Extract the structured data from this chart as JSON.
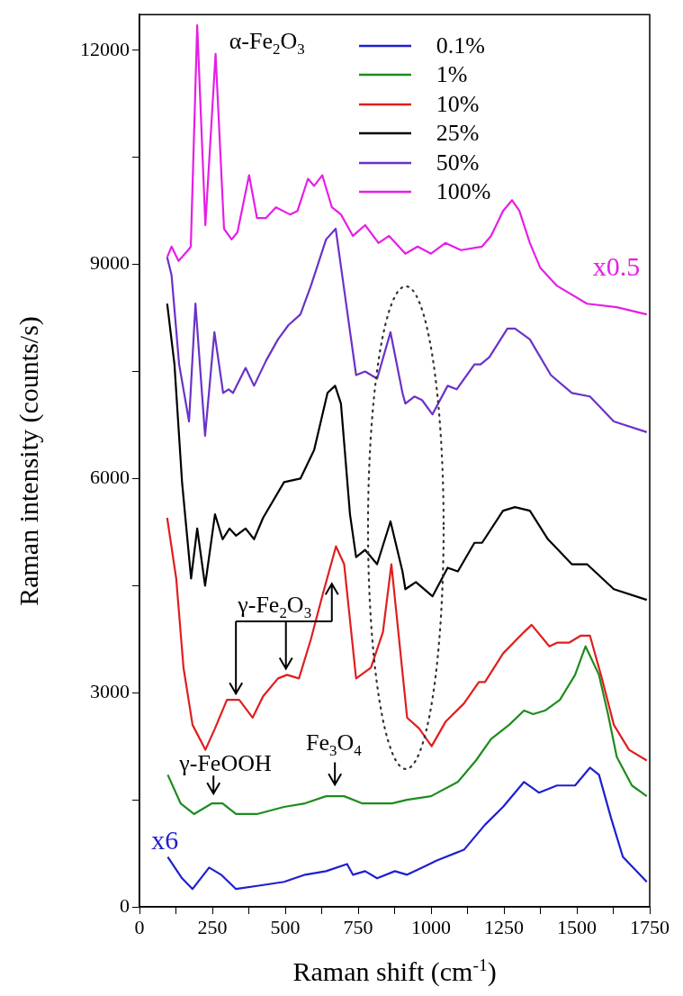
{
  "chart_data": {
    "type": "line",
    "xlabel": "Raman shift (cm$^{-1}$)",
    "ylabel": "Raman intensity (counts/s)",
    "xlim": [
      0,
      1750
    ],
    "ylim": [
      0,
      12500
    ],
    "xticks": [
      0,
      {
        "value": 125,
        "label": null
      },
      250,
      {
        "value": 375,
        "label": null
      },
      500,
      {
        "value": 625,
        "label": null
      },
      750,
      {
        "value": 875,
        "label": null
      },
      1000,
      {
        "value": 1125,
        "label": null
      },
      1250,
      {
        "value": 1375,
        "label": null
      },
      1500,
      {
        "value": 1625,
        "label": null
      },
      1750
    ],
    "yticks": [
      0,
      {
        "value": 1500,
        "label": null
      },
      3000,
      {
        "value": 4500,
        "label": null
      },
      6000,
      {
        "value": 7500,
        "label": null
      },
      9000,
      {
        "value": 10500,
        "label": null
      },
      12000
    ],
    "grid": false,
    "legend": "top",
    "marker": "none",
    "line_style": "solid",
    "series": [
      {
        "name": "0.1%",
        "color": "#1f1fd0",
        "x": [
          97,
          146,
          182,
          239,
          280,
          331,
          414,
          496,
          568,
          640,
          712,
          732,
          774,
          815,
          876,
          918,
          969,
          1020,
          1113,
          1185,
          1247,
          1319,
          1370,
          1432,
          1494,
          1545,
          1576,
          1617,
          1658,
          1740
        ],
        "values": [
          700,
          400,
          250,
          550,
          450,
          250,
          300,
          350,
          450,
          500,
          600,
          450,
          500,
          400,
          500,
          450,
          550,
          650,
          800,
          1150,
          1400,
          1750,
          1600,
          1700,
          1700,
          1950,
          1850,
          1250,
          700,
          350
        ]
      },
      {
        "name": "1%",
        "color": "#1e8c1e",
        "x": [
          97,
          141,
          187,
          249,
          285,
          331,
          403,
          496,
          568,
          640,
          702,
          763,
          866,
          918,
          1000,
          1092,
          1154,
          1206,
          1268,
          1319,
          1350,
          1391,
          1442,
          1494,
          1530,
          1576,
          1607,
          1637,
          1689,
          1740
        ],
        "values": [
          1850,
          1450,
          1300,
          1450,
          1450,
          1300,
          1300,
          1400,
          1450,
          1550,
          1550,
          1450,
          1450,
          1500,
          1550,
          1750,
          2050,
          2350,
          2550,
          2750,
          2700,
          2750,
          2900,
          3250,
          3650,
          3250,
          2700,
          2100,
          1700,
          1550
        ]
      },
      {
        "name": "10%",
        "color": "#e01e1e",
        "x": [
          95,
          126,
          151,
          182,
          226,
          259,
          300,
          342,
          388,
          424,
          475,
          506,
          547,
          588,
          630,
          674,
          702,
          743,
          794,
          835,
          864,
          918,
          959,
          1002,
          1051,
          1113,
          1164,
          1185,
          1247,
          1319,
          1345,
          1406,
          1432,
          1473,
          1514,
          1545,
          1586,
          1627,
          1679,
          1740
        ],
        "values": [
          5450,
          4600,
          3350,
          2550,
          2200,
          2500,
          2900,
          2900,
          2650,
          2950,
          3200,
          3250,
          3200,
          3750,
          4400,
          5050,
          4800,
          3200,
          3350,
          3850,
          4800,
          2650,
          2500,
          2250,
          2600,
          2850,
          3150,
          3150,
          3550,
          3850,
          3950,
          3650,
          3700,
          3700,
          3800,
          3800,
          3200,
          2550,
          2200,
          2050
        ]
      },
      {
        "name": "25%",
        "color": "#000000",
        "x": [
          95,
          120,
          146,
          177,
          198,
          225,
          259,
          285,
          309,
          331,
          364,
          393,
          424,
          496,
          552,
          599,
          645,
          671,
          691,
          722,
          743,
          774,
          815,
          861,
          902,
          912,
          948,
          1005,
          1057,
          1092,
          1149,
          1175,
          1247,
          1288,
          1339,
          1401,
          1483,
          1535,
          1627,
          1740
        ],
        "values": [
          8450,
          7600,
          5950,
          4600,
          5300,
          4500,
          5500,
          5150,
          5300,
          5200,
          5300,
          5150,
          5450,
          5950,
          6000,
          6400,
          7200,
          7300,
          7050,
          5500,
          4900,
          5000,
          4800,
          5400,
          4700,
          4450,
          4550,
          4350,
          4750,
          4700,
          5100,
          5100,
          5550,
          5600,
          5550,
          5150,
          4800,
          4800,
          4450,
          4300
        ]
      },
      {
        "name": "50%",
        "color": "#6a32c8",
        "x": [
          95,
          110,
          136,
          170,
          192,
          225,
          257,
          287,
          306,
          321,
          364,
          393,
          434,
          475,
          511,
          552,
          588,
          640,
          673,
          702,
          743,
          774,
          815,
          861,
          902,
          912,
          943,
          969,
          1005,
          1057,
          1088,
          1149,
          1170,
          1200,
          1262,
          1288,
          1339,
          1411,
          1483,
          1545,
          1627,
          1740
        ],
        "values": [
          9100,
          8850,
          7600,
          6800,
          8450,
          6600,
          8050,
          7200,
          7250,
          7200,
          7550,
          7300,
          7650,
          7950,
          8150,
          8300,
          8700,
          9350,
          9500,
          8650,
          7450,
          7500,
          7400,
          8050,
          7200,
          7050,
          7150,
          7100,
          6900,
          7300,
          7250,
          7600,
          7600,
          7700,
          8100,
          8100,
          7950,
          7450,
          7200,
          7150,
          6800,
          6650
        ]
      },
      {
        "name": "100%",
        "color": "#e61ee6",
        "x": [
          95,
          110,
          134,
          167,
          176,
          198,
          226,
          261,
          290,
          316,
          336,
          376,
          403,
          434,
          468,
          516,
          542,
          578,
          599,
          627,
          660,
          691,
          732,
          774,
          820,
          856,
          912,
          954,
          1000,
          1049,
          1103,
          1175,
          1206,
          1247,
          1278,
          1303,
          1339,
          1375,
          1432,
          1535,
          1637,
          1740
        ],
        "values": [
          9100,
          9250,
          9050,
          9200,
          9250,
          12350,
          9550,
          11950,
          9500,
          9350,
          9450,
          10250,
          9650,
          9650,
          9800,
          9700,
          9750,
          10200,
          10100,
          10250,
          9800,
          9700,
          9400,
          9550,
          9300,
          9400,
          9150,
          9250,
          9150,
          9300,
          9200,
          9250,
          9400,
          9750,
          9900,
          9750,
          9300,
          8950,
          8700,
          8450,
          8400,
          8300
        ]
      }
    ],
    "annotations": [
      "α-Fe$_{2}$O$_{3}$",
      "γ-Fe$_{2}$O$_{3}$",
      "γ-FeOOH",
      "Fe$_{3}$O$_{4}$",
      "x0.5",
      "x6"
    ]
  }
}
